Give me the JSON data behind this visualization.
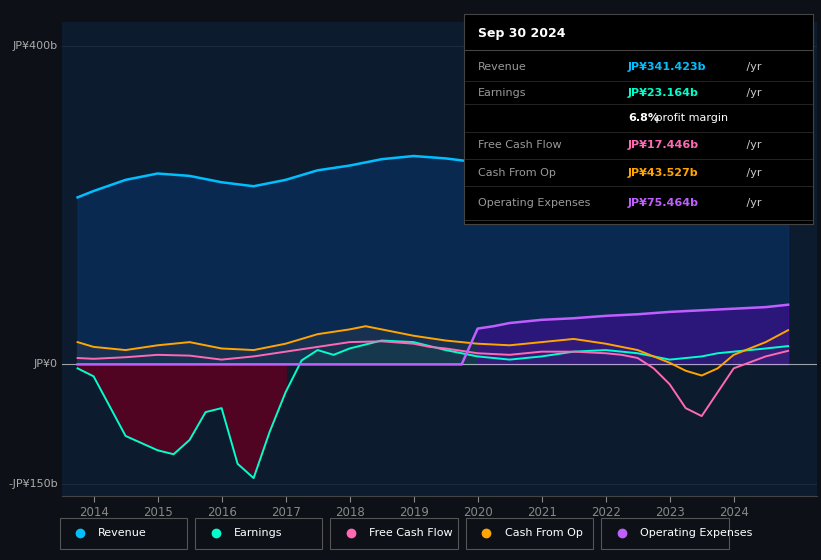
{
  "background_color": "#0d1117",
  "plot_bg_color": "#0d1b2e",
  "ylim": [
    -165,
    430
  ],
  "xlim": [
    2013.5,
    2025.3
  ],
  "xticks": [
    2014,
    2015,
    2016,
    2017,
    2018,
    2019,
    2020,
    2021,
    2022,
    2023,
    2024
  ],
  "ylabel_400": "JP¥400b",
  "ylabel_0": "JP¥0",
  "ylabel_neg150": "-JP¥150b",
  "info_box": {
    "title": "Sep 30 2024",
    "rows": [
      {
        "label": "Revenue",
        "value": "JP¥341.423b",
        "suffix": " /yr",
        "value_color": "#00bfff"
      },
      {
        "label": "Earnings",
        "value": "JP¥23.164b",
        "suffix": " /yr",
        "value_color": "#00ffcc"
      },
      {
        "label": "",
        "value": "6.8%",
        "suffix": " profit margin",
        "value_color": "#ffffff",
        "is_margin": true
      },
      {
        "label": "Free Cash Flow",
        "value": "JP¥17.446b",
        "suffix": " /yr",
        "value_color": "#ff69b4"
      },
      {
        "label": "Cash From Op",
        "value": "JP¥43.527b",
        "suffix": " /yr",
        "value_color": "#ffa500"
      },
      {
        "label": "Operating Expenses",
        "value": "JP¥75.464b",
        "suffix": " /yr",
        "value_color": "#bf5fff"
      }
    ]
  },
  "series": {
    "revenue": {
      "color": "#00bfff",
      "fill_color": "#0a3060",
      "x": [
        2013.75,
        2014.0,
        2014.5,
        2015.0,
        2015.5,
        2016.0,
        2016.5,
        2017.0,
        2017.5,
        2018.0,
        2018.5,
        2019.0,
        2019.5,
        2020.0,
        2020.5,
        2021.0,
        2021.5,
        2022.0,
        2022.5,
        2022.75,
        2023.0,
        2023.25,
        2023.75,
        2024.0,
        2024.5,
        2024.85
      ],
      "y": [
        210,
        218,
        232,
        240,
        237,
        229,
        224,
        232,
        244,
        250,
        258,
        262,
        259,
        254,
        249,
        252,
        257,
        266,
        270,
        262,
        257,
        261,
        285,
        320,
        355,
        341
      ]
    },
    "earnings": {
      "color": "#00ffcc",
      "fill_color_neg": "#4d0020",
      "fill_color_pos": "#004d30",
      "x": [
        2013.75,
        2014.0,
        2014.5,
        2015.0,
        2015.25,
        2015.5,
        2015.75,
        2016.0,
        2016.25,
        2016.5,
        2016.75,
        2017.0,
        2017.25,
        2017.5,
        2017.75,
        2018.0,
        2018.5,
        2019.0,
        2019.5,
        2020.0,
        2020.5,
        2021.0,
        2021.5,
        2022.0,
        2022.5,
        2022.75,
        2023.0,
        2023.25,
        2023.5,
        2023.75,
        2024.0,
        2024.5,
        2024.85
      ],
      "y": [
        -5,
        -15,
        -90,
        -108,
        -113,
        -95,
        -60,
        -55,
        -125,
        -143,
        -85,
        -35,
        5,
        18,
        12,
        20,
        30,
        28,
        18,
        10,
        6,
        10,
        16,
        18,
        14,
        10,
        6,
        8,
        10,
        14,
        16,
        20,
        23
      ]
    },
    "free_cash_flow": {
      "color": "#ff69b4",
      "x": [
        2013.75,
        2014.0,
        2014.5,
        2015.0,
        2015.5,
        2016.0,
        2016.5,
        2017.0,
        2017.5,
        2018.0,
        2018.5,
        2019.0,
        2019.25,
        2019.5,
        2019.75,
        2020.0,
        2020.5,
        2021.0,
        2021.5,
        2022.0,
        2022.25,
        2022.5,
        2022.75,
        2023.0,
        2023.25,
        2023.5,
        2023.75,
        2024.0,
        2024.5,
        2024.85
      ],
      "y": [
        8,
        7,
        9,
        12,
        11,
        6,
        10,
        16,
        22,
        28,
        29,
        26,
        22,
        20,
        17,
        14,
        12,
        16,
        16,
        14,
        12,
        8,
        -5,
        -25,
        -55,
        -65,
        -35,
        -5,
        10,
        17
      ]
    },
    "cash_from_op": {
      "color": "#ffa500",
      "x": [
        2013.75,
        2014.0,
        2014.5,
        2015.0,
        2015.5,
        2016.0,
        2016.5,
        2017.0,
        2017.5,
        2018.0,
        2018.25,
        2018.5,
        2018.75,
        2019.0,
        2019.5,
        2020.0,
        2020.5,
        2021.0,
        2021.5,
        2022.0,
        2022.5,
        2022.75,
        2023.0,
        2023.25,
        2023.5,
        2023.75,
        2024.0,
        2024.5,
        2024.85
      ],
      "y": [
        28,
        22,
        18,
        24,
        28,
        20,
        18,
        26,
        38,
        44,
        48,
        44,
        40,
        36,
        30,
        26,
        24,
        28,
        32,
        26,
        18,
        10,
        2,
        -8,
        -14,
        -5,
        12,
        28,
        43
      ]
    },
    "operating_expenses": {
      "color": "#bf5fff",
      "x": [
        2013.75,
        2014.0,
        2014.5,
        2015.0,
        2015.5,
        2016.0,
        2016.5,
        2017.0,
        2017.5,
        2018.0,
        2018.5,
        2019.0,
        2019.5,
        2019.75,
        2020.0,
        2020.25,
        2020.5,
        2021.0,
        2021.5,
        2022.0,
        2022.5,
        2023.0,
        2023.5,
        2024.0,
        2024.5,
        2024.85
      ],
      "y": [
        0,
        0,
        0,
        0,
        0,
        0,
        0,
        0,
        0,
        0,
        0,
        0,
        0,
        0,
        45,
        48,
        52,
        56,
        58,
        61,
        63,
        66,
        68,
        70,
        72,
        75
      ]
    }
  },
  "legend_items": [
    {
      "label": "Revenue",
      "color": "#00bfff"
    },
    {
      "label": "Earnings",
      "color": "#00ffcc"
    },
    {
      "label": "Free Cash Flow",
      "color": "#ff69b4"
    },
    {
      "label": "Cash From Op",
      "color": "#ffa500"
    },
    {
      "label": "Operating Expenses",
      "color": "#bf5fff"
    }
  ]
}
